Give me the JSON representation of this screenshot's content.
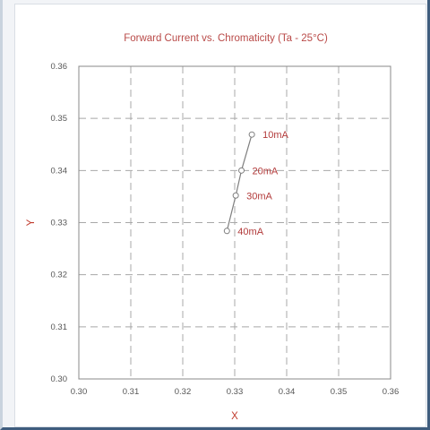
{
  "chart_data": {
    "type": "line",
    "title": "Forward Current vs. Chromaticity (Ta - 25°C)",
    "xlabel": "X",
    "ylabel": "Y",
    "xlim": [
      0.3,
      0.36
    ],
    "ylim": [
      0.3,
      0.36
    ],
    "x_ticks": [
      "0.30",
      "0.31",
      "0.32",
      "0.33",
      "0.34",
      "0.35",
      "0.36"
    ],
    "y_ticks": [
      "0.30",
      "0.31",
      "0.32",
      "0.33",
      "0.34",
      "0.35",
      "0.36"
    ],
    "grid": true,
    "series": [
      {
        "points": [
          {
            "x": 0.3333,
            "y": 0.3469,
            "label": "10mA"
          },
          {
            "x": 0.3313,
            "y": 0.34,
            "label": "20mA"
          },
          {
            "x": 0.3302,
            "y": 0.3352,
            "label": "30mA"
          },
          {
            "x": 0.3285,
            "y": 0.3284,
            "label": "40mA"
          }
        ]
      }
    ],
    "colors": {
      "title": "#b94a48",
      "labels": "#b23a3a",
      "line": "#7f7f7f"
    }
  }
}
